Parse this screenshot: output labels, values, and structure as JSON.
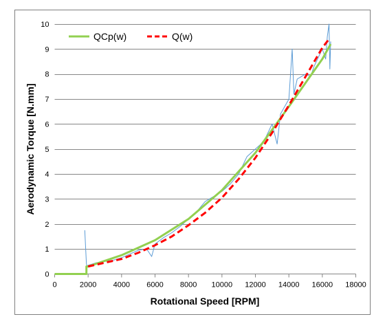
{
  "chart_data": {
    "type": "line",
    "title": "",
    "xlabel": "Rotational Speed [RPM]",
    "ylabel": "Aerodynamic Torque [N.mm]",
    "xlim": [
      0,
      18000
    ],
    "ylim": [
      0,
      10
    ],
    "x_ticks": [
      0,
      2000,
      4000,
      6000,
      8000,
      10000,
      12000,
      14000,
      16000,
      18000
    ],
    "y_ticks": [
      0,
      1,
      2,
      3,
      4,
      5,
      6,
      7,
      8,
      9,
      10
    ],
    "x_tick_labels": [
      "0",
      "2000",
      "4000",
      "6000",
      "8000",
      "10000",
      "12000",
      "14000",
      "16000",
      "18000"
    ],
    "y_tick_labels": [
      "0",
      "1",
      "2",
      "3",
      "4",
      "5",
      "6",
      "7",
      "8",
      "9",
      "10"
    ],
    "grid": "horizontal",
    "legend_position": "top-left",
    "series": [
      {
        "name": "QCp(w)",
        "color": "#92d050",
        "style": "solid",
        "x": [
          0,
          1900,
          1900,
          2000,
          4000,
          6000,
          8000,
          10000,
          12000,
          14000,
          16000,
          16500
        ],
        "y": [
          0,
          0,
          0.3,
          0.3,
          0.75,
          1.35,
          2.2,
          3.35,
          4.85,
          6.7,
          8.6,
          9.2
        ]
      },
      {
        "name": "Q(w)",
        "color": "#ff0000",
        "style": "dashed",
        "x": [
          2000,
          3000,
          4000,
          5000,
          6000,
          7000,
          8000,
          9000,
          10000,
          11000,
          12000,
          13000,
          14000,
          15000,
          16000,
          16400
        ],
        "y": [
          0.3,
          0.45,
          0.6,
          0.85,
          1.15,
          1.5,
          1.95,
          2.45,
          3.05,
          3.8,
          4.65,
          5.65,
          6.75,
          7.9,
          9.05,
          9.4
        ]
      },
      {
        "name": "",
        "color": "#5b9bd5",
        "style": "thin",
        "x": [
          1800,
          1900,
          1950,
          2000,
          2500,
          3000,
          3500,
          4000,
          4500,
          5000,
          5500,
          5800,
          6000,
          6500,
          7000,
          7500,
          8000,
          8500,
          9000,
          9500,
          10000,
          10500,
          11000,
          11500,
          12000,
          12500,
          13000,
          13300,
          13500,
          14000,
          14200,
          14300,
          14500,
          15000,
          15300,
          15500,
          16000,
          16200,
          16300,
          16400,
          16450,
          16500
        ],
        "y": [
          1.75,
          0.4,
          0.3,
          0.35,
          0.45,
          0.5,
          0.55,
          0.65,
          0.8,
          0.95,
          1.0,
          0.7,
          1.2,
          1.45,
          1.65,
          1.9,
          2.2,
          2.5,
          2.9,
          3.1,
          3.3,
          3.6,
          4.0,
          4.7,
          5.0,
          5.3,
          6.0,
          5.2,
          6.4,
          7.0,
          9.0,
          7.2,
          7.8,
          8.0,
          7.9,
          8.3,
          9.0,
          8.6,
          9.5,
          10.0,
          8.2,
          9.3
        ]
      }
    ]
  }
}
